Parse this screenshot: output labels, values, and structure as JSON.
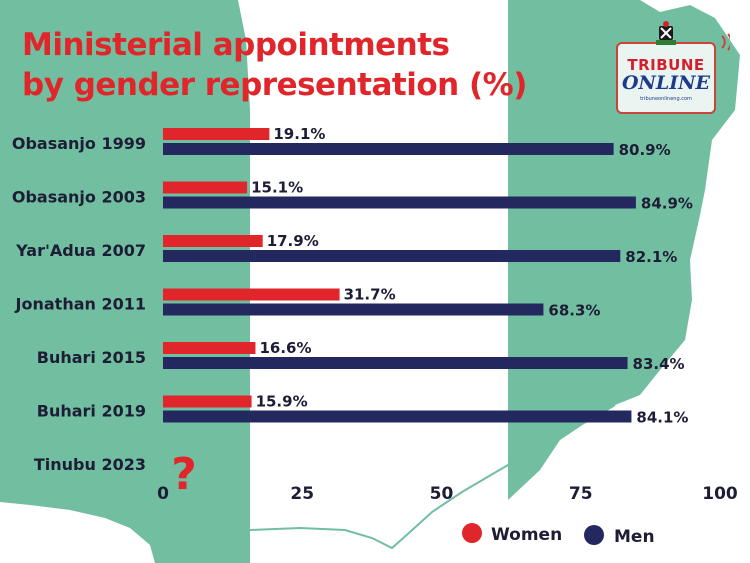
{
  "title_lines": [
    "Ministerial appointments",
    "by gender representation (%)"
  ],
  "logo": {
    "line1": "TRIBUNE",
    "line2": "ONLINE",
    "url": "tribuneonlineng.com"
  },
  "colors": {
    "women": "#e0262b",
    "men": "#23295f",
    "map_green": "#72bea0",
    "title": "#e0262b"
  },
  "chart_data": {
    "type": "bar",
    "orientation": "horizontal",
    "categories": [
      "Obasanjo 1999",
      "Obasanjo 2003",
      "Yar'Adua 2007",
      "Jonathan 2011",
      "Buhari 2015",
      "Buhari 2019",
      "Tinubu 2023"
    ],
    "series": [
      {
        "name": "Women",
        "values": [
          19.1,
          15.1,
          17.9,
          31.7,
          16.6,
          15.9,
          null
        ],
        "labels": [
          "19.1%",
          "15.1%",
          "17.9%",
          "31.7%",
          "16.6%",
          "15.9%",
          ""
        ]
      },
      {
        "name": "Men",
        "values": [
          80.9,
          84.9,
          82.1,
          68.3,
          83.4,
          84.1,
          null
        ],
        "labels": [
          "80.9%",
          "84.9%",
          "82.1%",
          "68.3%",
          "83.4%",
          "84.1%",
          ""
        ]
      }
    ],
    "unknown_marker": "?",
    "xlim": [
      0,
      100
    ],
    "xticks": [
      0,
      25,
      50,
      75,
      100
    ],
    "xtick_labels": [
      "0",
      "25",
      "50",
      "75",
      "100"
    ],
    "legend": [
      "Women",
      "Men"
    ],
    "legend_position": "bottom-right",
    "grid": false
  }
}
